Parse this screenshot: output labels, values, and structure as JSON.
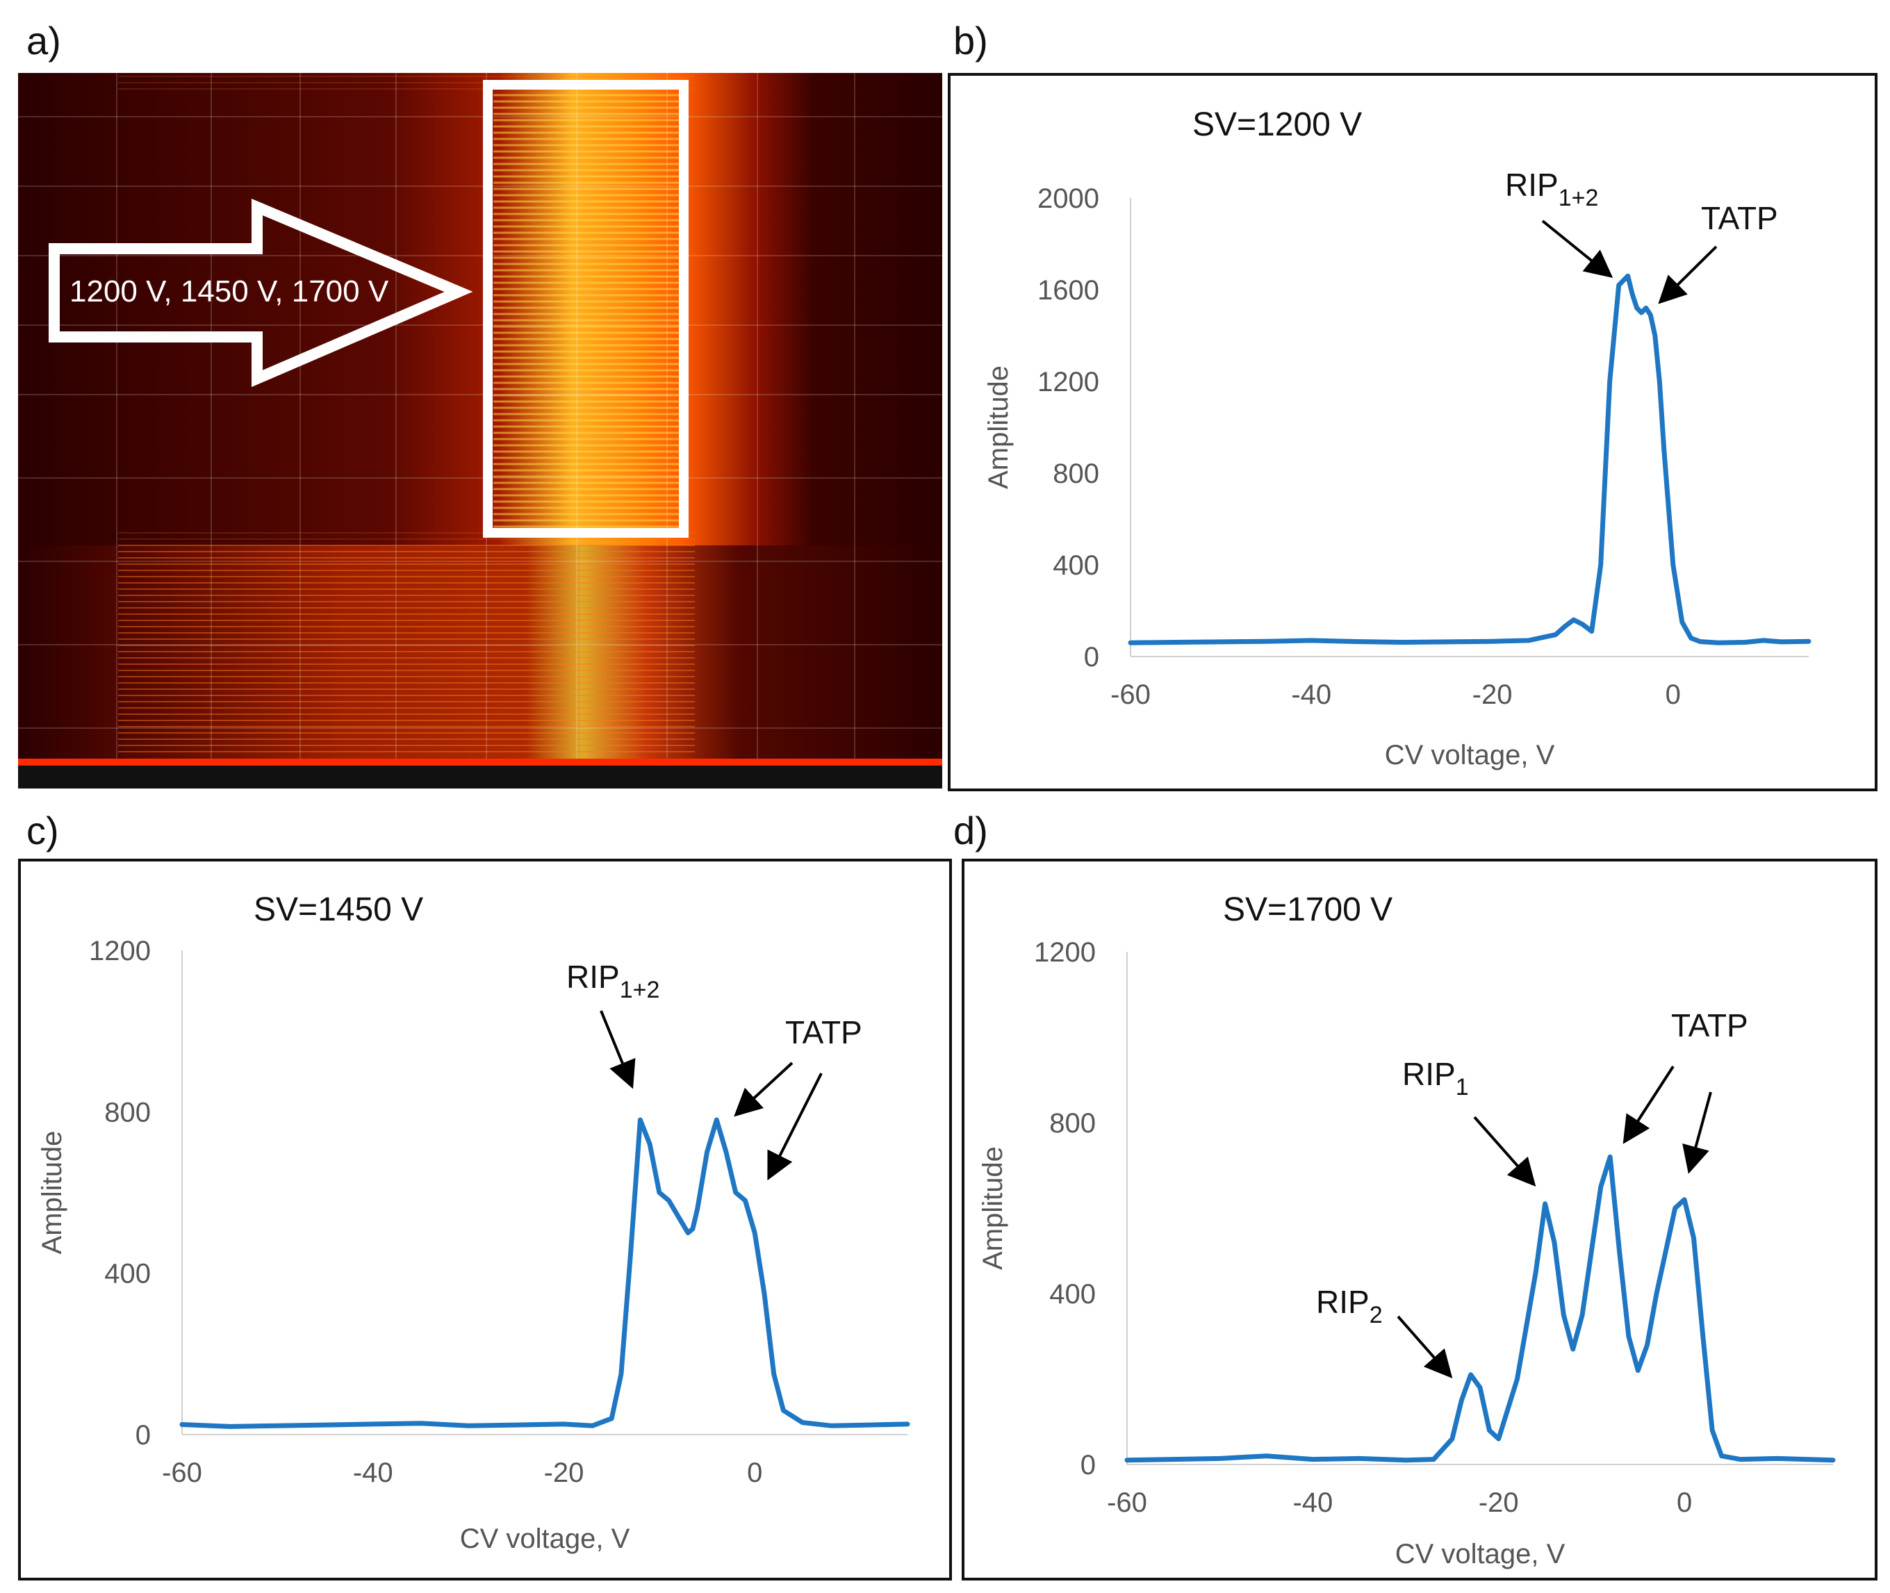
{
  "panel_labels": [
    "a)",
    "b)",
    "c)",
    "d)"
  ],
  "heatmap": {
    "arrow_text": "1200 V, 1450 V, 1700 V",
    "colors": {
      "background": "#2a0000",
      "hot": "#ffe14a",
      "mid": "#e8400a",
      "box": "#ffffff",
      "baseline": "#ff2a00"
    }
  },
  "chart_data": [
    {
      "type": "line",
      "panel": "b)",
      "title": "SV=1200  V",
      "xlabel": "CV voltage, V",
      "ylabel": "Amplitude",
      "xlim": [
        -60,
        15
      ],
      "ylim": [
        0,
        2000
      ],
      "xticks": [
        "-60",
        "-40",
        "-20",
        "0"
      ],
      "yticks": [
        "0",
        "400",
        "800",
        "1200",
        "1600",
        "2000"
      ],
      "line_color": "#1f77c4",
      "series": [
        {
          "x": [
            -60,
            -55,
            -50,
            -45,
            -40,
            -35,
            -30,
            -25,
            -20,
            -16,
            -13,
            -12,
            -11,
            -10,
            -9,
            -8,
            -7,
            -6,
            -5,
            -4.5,
            -4,
            -3.5,
            -3,
            -2.5,
            -2,
            -1.5,
            -1,
            0,
            1,
            2,
            3,
            5,
            8,
            10,
            12,
            15
          ],
          "y": [
            60,
            62,
            64,
            66,
            70,
            65,
            62,
            64,
            66,
            70,
            95,
            130,
            160,
            140,
            110,
            400,
            1200,
            1620,
            1660,
            1580,
            1520,
            1500,
            1520,
            1490,
            1400,
            1200,
            900,
            400,
            150,
            80,
            65,
            60,
            62,
            70,
            64,
            66
          ]
        }
      ],
      "annotations": [
        {
          "label": "RIP",
          "sub": "1+2"
        },
        {
          "label": "TATP",
          "sub": ""
        }
      ]
    },
    {
      "type": "line",
      "panel": "c)",
      "title": "SV=1450  V",
      "xlabel": "CV voltage, V",
      "ylabel": "Amplitude",
      "xlim": [
        -60,
        16
      ],
      "ylim": [
        0,
        1200
      ],
      "xticks": [
        "-60",
        "-40",
        "-20",
        "0"
      ],
      "yticks": [
        "0",
        "400",
        "800",
        "1200"
      ],
      "line_color": "#1f77c4",
      "series": [
        {
          "x": [
            -60,
            -55,
            -50,
            -45,
            -40,
            -35,
            -30,
            -25,
            -20,
            -17,
            -15,
            -14,
            -13,
            -12,
            -11,
            -10,
            -9,
            -8,
            -7,
            -6.5,
            -6,
            -5,
            -4,
            -3,
            -2,
            -1,
            0,
            1,
            2,
            3,
            5,
            8,
            12,
            16
          ],
          "y": [
            25,
            20,
            22,
            24,
            26,
            28,
            22,
            24,
            26,
            22,
            40,
            150,
            450,
            780,
            720,
            600,
            580,
            540,
            500,
            510,
            560,
            700,
            780,
            700,
            600,
            580,
            500,
            350,
            150,
            60,
            30,
            22,
            24,
            26
          ]
        }
      ],
      "annotations": [
        {
          "label": "RIP",
          "sub": "1+2"
        },
        {
          "label": "TATP",
          "sub": ""
        }
      ]
    },
    {
      "type": "line",
      "panel": "d)",
      "title": "SV=1700  V",
      "xlabel": "CV voltage, V",
      "ylabel": "Amplitude",
      "xlim": [
        -60,
        16
      ],
      "ylim": [
        0,
        1200
      ],
      "xticks": [
        "-60",
        "-40",
        "-20",
        "0"
      ],
      "yticks": [
        "0",
        "400",
        "800",
        "1200"
      ],
      "line_color": "#1f77c4",
      "series": [
        {
          "x": [
            -60,
            -55,
            -50,
            -45,
            -40,
            -35,
            -30,
            -27,
            -25,
            -24,
            -23,
            -22,
            -21,
            -20,
            -18,
            -16,
            -15,
            -14,
            -13,
            -12,
            -11,
            -10,
            -9,
            -8,
            -7,
            -6,
            -5,
            -4,
            -3,
            -2,
            -1,
            0,
            1,
            2,
            3,
            4,
            6,
            10,
            16
          ],
          "y": [
            10,
            12,
            14,
            20,
            12,
            14,
            10,
            12,
            60,
            150,
            210,
            180,
            80,
            60,
            200,
            450,
            610,
            520,
            350,
            270,
            350,
            500,
            650,
            720,
            500,
            300,
            220,
            280,
            400,
            500,
            600,
            620,
            530,
            300,
            80,
            20,
            12,
            14,
            10
          ]
        }
      ],
      "annotations": [
        {
          "label": "RIP",
          "sub": "2"
        },
        {
          "label": "RIP",
          "sub": "1"
        },
        {
          "label": "TATP",
          "sub": ""
        }
      ]
    }
  ]
}
